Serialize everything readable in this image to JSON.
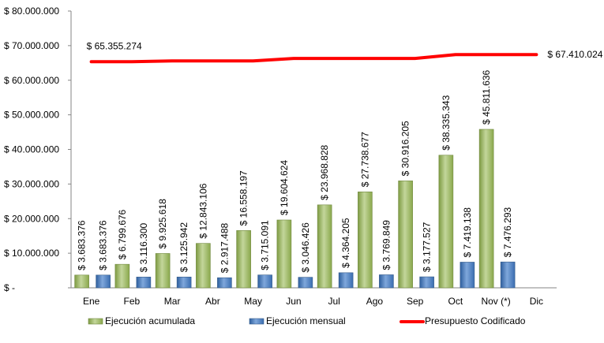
{
  "chart_data": {
    "type": "bar",
    "categories": [
      "Ene",
      "Feb",
      "Mar",
      "Abr",
      "May",
      "Jun",
      "Jul",
      "Ago",
      "Sep",
      "Oct",
      "Nov (*)",
      "Dic"
    ],
    "y_ticks": [
      "$ -",
      "$ 10.000.000",
      "$ 20.000.000",
      "$ 30.000.000",
      "$ 40.000.000",
      "$ 50.000.000",
      "$ 60.000.000",
      "$ 70.000.000",
      "$ 80.000.000"
    ],
    "ylim": [
      0,
      80000000
    ],
    "legend_position": "bottom",
    "series": [
      {
        "name": "Ejecución acumulada",
        "kind": "bar",
        "color": "#9BBB59",
        "values": [
          3683376,
          6799676,
          9925618,
          12843106,
          16558197,
          19604624,
          23968828,
          27738677,
          30916205,
          38335343,
          45811636,
          null
        ],
        "labels": [
          "$ 3.683.376",
          "$ 6.799.676",
          "$ 9.925.618",
          "$ 12.843.106",
          "$ 16.558.197",
          "$ 19.604.624",
          "$ 23.968.828",
          "$ 27.738.677",
          "$ 30.916.205",
          "$ 38.335.343",
          "$ 45.811.636",
          ""
        ]
      },
      {
        "name": "Ejecución mensual",
        "kind": "bar",
        "color": "#4F81BD",
        "values": [
          3683376,
          3116300,
          3125942,
          2917488,
          3715091,
          3046426,
          4364205,
          3769849,
          3177527,
          7419138,
          7476293,
          null
        ],
        "labels": [
          "$ 3.683.376",
          "$ 3.116.300",
          "$ 3.125.942",
          "$ 2.917.488",
          "$ 3.715.091",
          "$ 3.046.426",
          "$ 4.364.205",
          "$ 3.769.849",
          "$ 3.177.527",
          "$ 7.419.138",
          "$ 7.476.293",
          ""
        ]
      },
      {
        "name": "Presupuesto Codificado",
        "kind": "line",
        "color": "#FF0000",
        "values": [
          65355274,
          65355274,
          65600000,
          65600000,
          65600000,
          66300000,
          66300000,
          66300000,
          66300000,
          67410024,
          67410024,
          67410024
        ],
        "start_label": "$ 65.355.274",
        "end_label": "$ 67.410.024"
      }
    ]
  }
}
